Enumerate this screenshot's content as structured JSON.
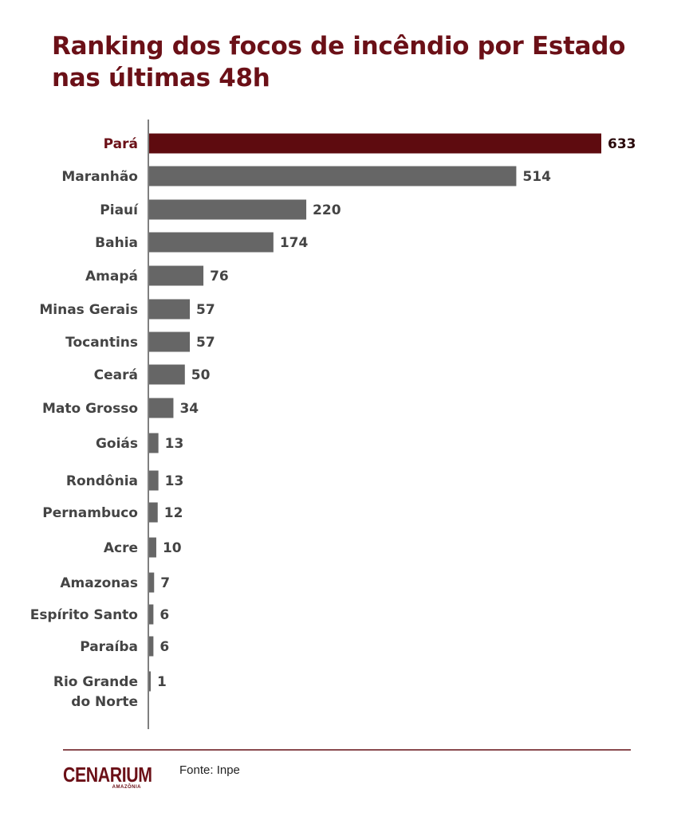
{
  "title_lines": [
    "Ranking dos focos de incêndio por Estado",
    "nas últimas 48h"
  ],
  "colors": {
    "highlight": "#5e0b0f",
    "bar": "#666666",
    "label": "#444444",
    "highlight_label": "#6b1017",
    "axis": "#555555"
  },
  "chart_data": {
    "type": "bar",
    "orientation": "horizontal",
    "title": "Ranking dos focos de incêndio por Estado nas últimas 48h",
    "categories": [
      "Pará",
      "Maranhão",
      "Piauí",
      "Bahia",
      "Amapá",
      "Minas Gerais",
      "Tocantins",
      "Ceará",
      "Mato Grosso",
      "Goiás",
      "Rondônia",
      "Pernambuco",
      "Acre",
      "Amazonas",
      "Espírito Santo",
      "Paraíba",
      "Rio Grande do Norte"
    ],
    "values": [
      633,
      514,
      220,
      174,
      76,
      57,
      57,
      50,
      34,
      13,
      13,
      12,
      10,
      7,
      6,
      6,
      1
    ],
    "highlight_index": 0,
    "data_labels": true,
    "grid": false,
    "xlabel": "",
    "ylabel": ""
  },
  "footer": {
    "source": "Fonte: Inpe",
    "logo": "CENARIUM",
    "logo_sub": "AMAZÔNIA"
  }
}
